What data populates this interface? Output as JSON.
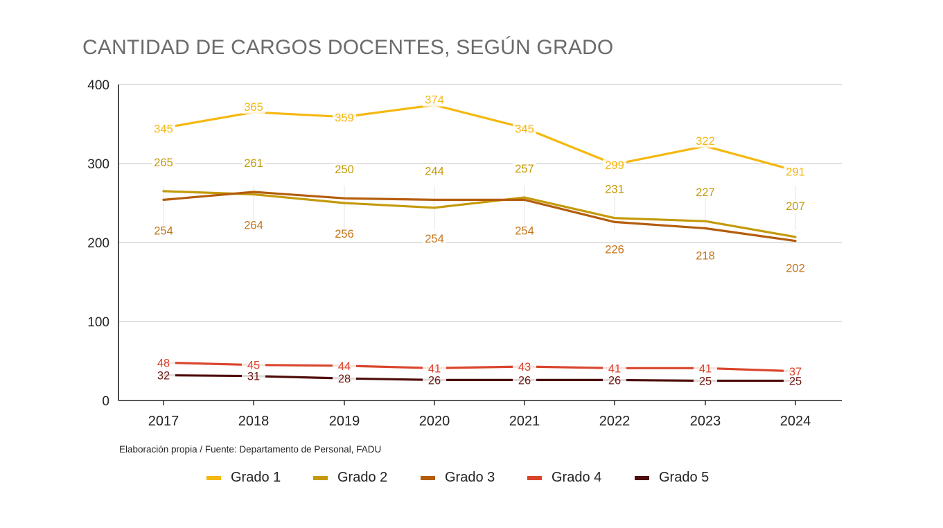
{
  "chart_data": {
    "type": "line",
    "title": "CANTIDAD DE CARGOS DOCENTES, SEGÚN GRADO",
    "xlabel": "",
    "ylabel": "",
    "categories": [
      "2017",
      "2018",
      "2019",
      "2020",
      "2021",
      "2022",
      "2023",
      "2024"
    ],
    "ylim": [
      0,
      400
    ],
    "yticks": [
      0,
      100,
      200,
      300,
      400
    ],
    "grid": true,
    "legend": "bottom",
    "series": [
      {
        "name": "Grado 1",
        "color": "#f4b80f",
        "values": [
          345,
          365,
          359,
          374,
          345,
          299,
          322,
          291
        ]
      },
      {
        "name": "Grado 2",
        "color": "#c49a08",
        "values": [
          265,
          261,
          250,
          244,
          257,
          231,
          227,
          207
        ]
      },
      {
        "name": "Grado 3",
        "color": "#b45d0c",
        "values": [
          254,
          264,
          256,
          254,
          254,
          226,
          218,
          202
        ]
      },
      {
        "name": "Grado 4",
        "color": "#d9452c",
        "values": [
          48,
          45,
          44,
          41,
          43,
          41,
          41,
          37
        ]
      },
      {
        "name": "Grado 5",
        "color": "#4e0d0a",
        "values": [
          32,
          31,
          28,
          26,
          26,
          26,
          25,
          25
        ]
      }
    ],
    "label_colors": {
      "Grado 1": "#f4b80f",
      "Grado 2": "#c49a08",
      "Grado 3": "#c6751a",
      "Grado 4": "#d9452c",
      "Grado 5": "#6e1a14"
    },
    "source": "Elaboración propia / Fuente: Departamento de Personal, FADU"
  }
}
